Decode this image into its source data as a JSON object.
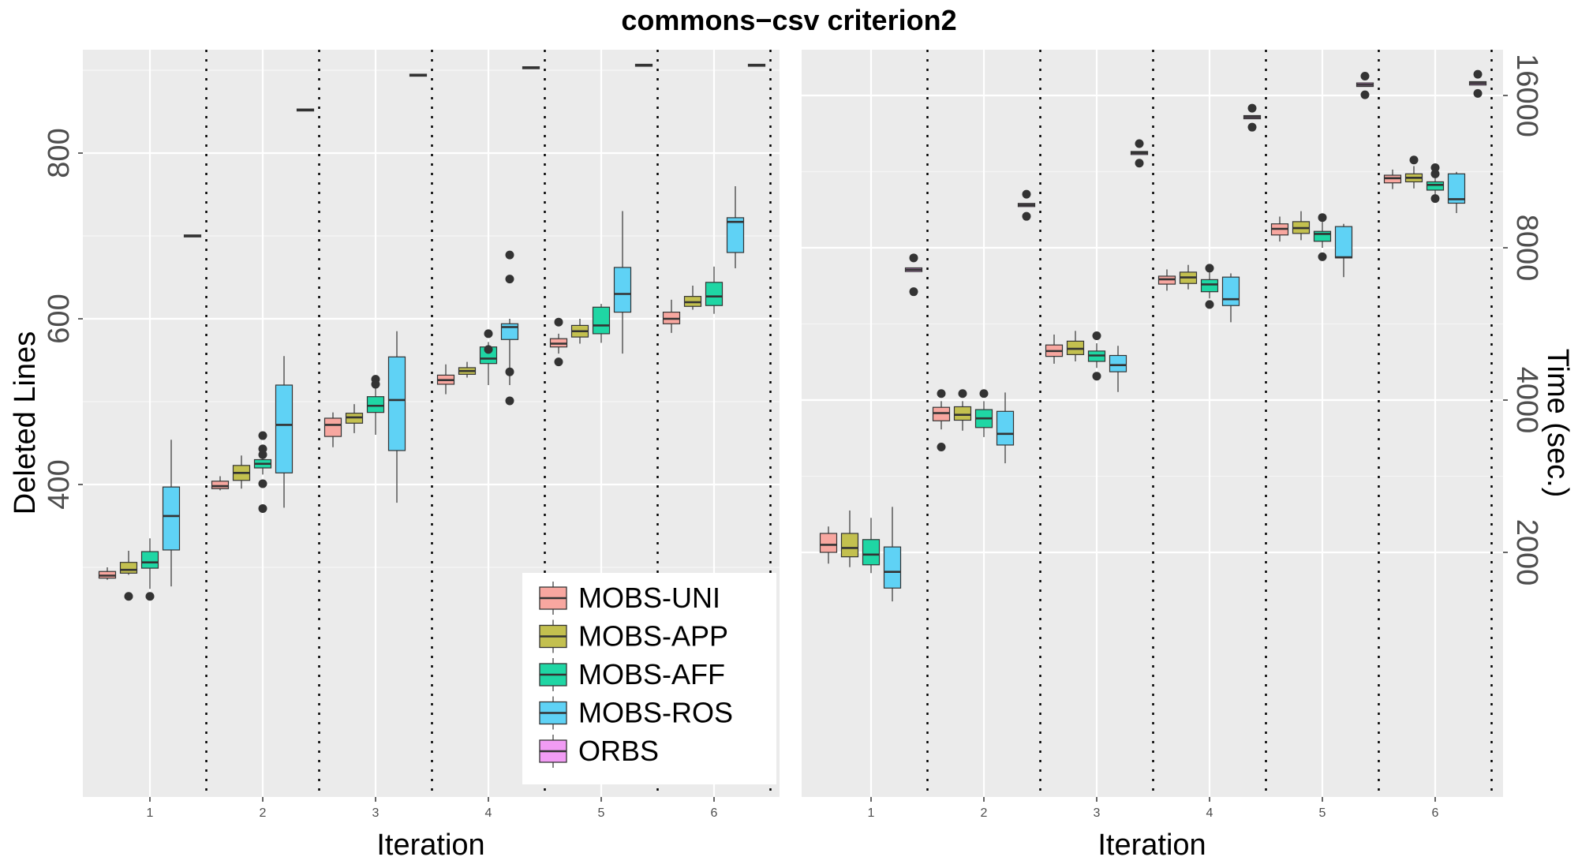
{
  "title": "commons−csv criterion2",
  "colors": {
    "MOBS-UNI": "#f8a7a0",
    "MOBS-APP": "#c3c04f",
    "MOBS-AFF": "#1fd6a4",
    "MOBS-ROS": "#5fd2f5",
    "ORBS": "#f19cf4"
  },
  "legend": {
    "position": "bottom-right of left panel",
    "items": [
      "MOBS-UNI",
      "MOBS-APP",
      "MOBS-AFF",
      "MOBS-ROS",
      "ORBS"
    ]
  },
  "chart_data": [
    {
      "type": "boxplot",
      "panel": "left",
      "xlabel": "Iteration",
      "ylabel": "Deleted Lines",
      "categories": [
        "1",
        "2",
        "3",
        "4",
        "5",
        "6"
      ],
      "ylim": [
        260,
        960
      ],
      "yticks": [
        400,
        600,
        800
      ],
      "grid": true,
      "series": [
        {
          "name": "MOBS-UNI",
          "boxes": [
            {
              "low": 285,
              "q1": 287,
              "median": 290,
              "q3": 295,
              "high": 300,
              "outliers": []
            },
            {
              "low": 393,
              "q1": 395,
              "median": 398,
              "q3": 404,
              "high": 410,
              "outliers": []
            },
            {
              "low": 445,
              "q1": 458,
              "median": 472,
              "q3": 480,
              "high": 487,
              "outliers": []
            },
            {
              "low": 509,
              "q1": 521,
              "median": 526,
              "q3": 532,
              "high": 545,
              "outliers": []
            },
            {
              "low": 558,
              "q1": 566,
              "median": 570,
              "q3": 576,
              "high": 582,
              "outliers": [
                548,
                596
              ]
            },
            {
              "low": 583,
              "q1": 594,
              "median": 600,
              "q3": 608,
              "high": 623,
              "outliers": []
            }
          ]
        },
        {
          "name": "MOBS-APP",
          "boxes": [
            {
              "low": 291,
              "q1": 293,
              "median": 297,
              "q3": 306,
              "high": 320,
              "outliers": [
                265
              ]
            },
            {
              "low": 395,
              "q1": 405,
              "median": 414,
              "q3": 423,
              "high": 435,
              "outliers": []
            },
            {
              "low": 462,
              "q1": 474,
              "median": 481,
              "q3": 486,
              "high": 497,
              "outliers": []
            },
            {
              "low": 529,
              "q1": 533,
              "median": 537,
              "q3": 541,
              "high": 548,
              "outliers": []
            },
            {
              "low": 570,
              "q1": 578,
              "median": 585,
              "q3": 592,
              "high": 600,
              "outliers": []
            },
            {
              "low": 611,
              "q1": 615,
              "median": 620,
              "q3": 627,
              "high": 640,
              "outliers": []
            }
          ]
        },
        {
          "name": "MOBS-AFF",
          "boxes": [
            {
              "low": 274,
              "q1": 299,
              "median": 306,
              "q3": 319,
              "high": 335,
              "outliers": [
                265
              ]
            },
            {
              "low": 412,
              "q1": 420,
              "median": 425,
              "q3": 430,
              "high": 436,
              "outliers": [
                443,
                436,
                459,
                401,
                371
              ]
            },
            {
              "low": 460,
              "q1": 487,
              "median": 495,
              "q3": 506,
              "high": 532,
              "outliers": [
                527,
                521
              ]
            },
            {
              "low": 520,
              "q1": 546,
              "median": 552,
              "q3": 566,
              "high": 572,
              "outliers": [
                582,
                563
              ]
            },
            {
              "low": 571,
              "q1": 582,
              "median": 592,
              "q3": 614,
              "high": 618,
              "outliers": []
            },
            {
              "low": 606,
              "q1": 616,
              "median": 627,
              "q3": 644,
              "high": 663,
              "outliers": []
            }
          ]
        },
        {
          "name": "MOBS-ROS",
          "boxes": [
            {
              "low": 277,
              "q1": 321,
              "median": 362,
              "q3": 397,
              "high": 454,
              "outliers": []
            },
            {
              "low": 372,
              "q1": 414,
              "median": 472,
              "q3": 520,
              "high": 555,
              "outliers": []
            },
            {
              "low": 378,
              "q1": 441,
              "median": 502,
              "q3": 554,
              "high": 585,
              "outliers": []
            },
            {
              "low": 520,
              "q1": 575,
              "median": 590,
              "q3": 594,
              "high": 600,
              "outliers": [
                677,
                648,
                536,
                501
              ]
            },
            {
              "low": 558,
              "q1": 608,
              "median": 630,
              "q3": 662,
              "high": 730,
              "outliers": []
            },
            {
              "low": 661,
              "q1": 680,
              "median": 717,
              "q3": 722,
              "high": 760,
              "outliers": []
            }
          ]
        },
        {
          "name": "ORBS",
          "boxes": [
            {
              "low": 700,
              "q1": 700,
              "median": 700,
              "q3": 700,
              "high": 700,
              "outliers": []
            },
            {
              "low": 852,
              "q1": 852,
              "median": 852,
              "q3": 852,
              "high": 852,
              "outliers": []
            },
            {
              "low": 894,
              "q1": 894,
              "median": 894,
              "q3": 894,
              "high": 894,
              "outliers": []
            },
            {
              "low": 903,
              "q1": 903,
              "median": 903,
              "q3": 903,
              "high": 903,
              "outliers": []
            },
            {
              "low": 906,
              "q1": 906,
              "median": 906,
              "q3": 906,
              "high": 906,
              "outliers": []
            },
            {
              "low": 906,
              "q1": 906,
              "median": 906,
              "q3": 906,
              "high": 906,
              "outliers": []
            }
          ]
        }
      ]
    },
    {
      "type": "boxplot",
      "panel": "right",
      "xlabel": "Iteration",
      "ylabel": "Time (sec.)",
      "categories": [
        "1",
        "2",
        "3",
        "4",
        "5",
        "6"
      ],
      "yscale": "log",
      "ylim": [
        1300,
        20000
      ],
      "yticks": [
        2000,
        4000,
        8000,
        16000
      ],
      "grid": true,
      "series": [
        {
          "name": "MOBS-UNI",
          "boxes": [
            {
              "low": 1900,
              "q1": 2000,
              "median": 2070,
              "q3": 2180,
              "high": 2250,
              "outliers": []
            },
            {
              "low": 3500,
              "q1": 3640,
              "median": 3770,
              "q3": 3870,
              "high": 3980,
              "outliers": [
                4120,
                3230
              ]
            },
            {
              "low": 4720,
              "q1": 4880,
              "median": 5000,
              "q3": 5140,
              "high": 5390,
              "outliers": []
            },
            {
              "low": 6580,
              "q1": 6780,
              "median": 6930,
              "q3": 7030,
              "high": 7250,
              "outliers": []
            },
            {
              "low": 8230,
              "q1": 8480,
              "median": 8720,
              "q3": 8920,
              "high": 9220,
              "outliers": []
            },
            {
              "low": 10450,
              "q1": 10750,
              "median": 10980,
              "q3": 11130,
              "high": 11420,
              "outliers": []
            }
          ]
        },
        {
          "name": "MOBS-APP",
          "boxes": [
            {
              "low": 1870,
              "q1": 1960,
              "median": 2040,
              "q3": 2180,
              "high": 2420,
              "outliers": []
            },
            {
              "low": 3480,
              "q1": 3650,
              "median": 3740,
              "q3": 3880,
              "high": 3980,
              "outliers": [
                4120
              ]
            },
            {
              "low": 4770,
              "q1": 4920,
              "median": 5050,
              "q3": 5230,
              "high": 5480,
              "outliers": []
            },
            {
              "low": 6620,
              "q1": 6800,
              "median": 6990,
              "q3": 7160,
              "high": 7400,
              "outliers": []
            },
            {
              "low": 8280,
              "q1": 8540,
              "median": 8750,
              "q3": 9010,
              "high": 9450,
              "outliers": []
            },
            {
              "low": 10480,
              "q1": 10800,
              "median": 11000,
              "q3": 11200,
              "high": 11600,
              "outliers": [
                11930
              ]
            }
          ]
        },
        {
          "name": "MOBS-AFF",
          "boxes": [
            {
              "low": 1820,
              "q1": 1890,
              "median": 1980,
              "q3": 2120,
              "high": 2340,
              "outliers": []
            },
            {
              "low": 3380,
              "q1": 3530,
              "median": 3680,
              "q3": 3830,
              "high": 3980,
              "outliers": [
                4120
              ]
            },
            {
              "low": 4630,
              "q1": 4770,
              "median": 4900,
              "q3": 5000,
              "high": 5180,
              "outliers": [
                5360,
                4460
              ]
            },
            {
              "low": 6350,
              "q1": 6550,
              "median": 6770,
              "q3": 6920,
              "high": 7150,
              "outliers": [
                7290,
                6180
              ]
            },
            {
              "low": 8000,
              "q1": 8240,
              "median": 8520,
              "q3": 8620,
              "high": 9000,
              "outliers": [
                9180,
                7680
              ]
            },
            {
              "low": 10100,
              "q1": 10400,
              "median": 10650,
              "q3": 10800,
              "high": 11100,
              "outliers": [
                11520,
                11200,
                10010
              ]
            }
          ]
        },
        {
          "name": "MOBS-ROS",
          "boxes": [
            {
              "low": 1600,
              "q1": 1700,
              "median": 1830,
              "q3": 2050,
              "high": 2460,
              "outliers": []
            },
            {
              "low": 3000,
              "q1": 3260,
              "median": 3430,
              "q3": 3800,
              "high": 4140,
              "outliers": []
            },
            {
              "low": 4150,
              "q1": 4550,
              "median": 4690,
              "q3": 4900,
              "high": 5120,
              "outliers": []
            },
            {
              "low": 5700,
              "q1": 6150,
              "median": 6330,
              "q3": 7000,
              "high": 7120,
              "outliers": []
            },
            {
              "low": 7000,
              "q1": 7640,
              "median": 7660,
              "q3": 8810,
              "high": 8920,
              "outliers": []
            },
            {
              "low": 9370,
              "q1": 9800,
              "median": 9980,
              "q3": 11200,
              "high": 11300,
              "outliers": []
            }
          ]
        },
        {
          "name": "ORBS",
          "boxes": [
            {
              "low": 7180,
              "q1": 7180,
              "median": 7240,
              "q3": 7300,
              "high": 7300,
              "outliers": [
                7640,
                6550
              ]
            },
            {
              "low": 9650,
              "q1": 9650,
              "median": 9720,
              "q3": 9790,
              "high": 9790,
              "outliers": [
                10210,
                9230
              ]
            },
            {
              "low": 12230,
              "q1": 12230,
              "median": 12320,
              "q3": 12400,
              "high": 12400,
              "outliers": [
                12850,
                11760
              ]
            },
            {
              "low": 14390,
              "q1": 14390,
              "median": 14500,
              "q3": 14600,
              "high": 14600,
              "outliers": [
                15100,
                13850
              ]
            },
            {
              "low": 16670,
              "q1": 16670,
              "median": 16800,
              "q3": 16940,
              "high": 16940,
              "outliers": [
                17470,
                16050
              ]
            },
            {
              "low": 16780,
              "q1": 16780,
              "median": 16920,
              "q3": 17040,
              "high": 17040,
              "outliers": [
                17620,
                16150
              ]
            }
          ]
        }
      ]
    }
  ]
}
